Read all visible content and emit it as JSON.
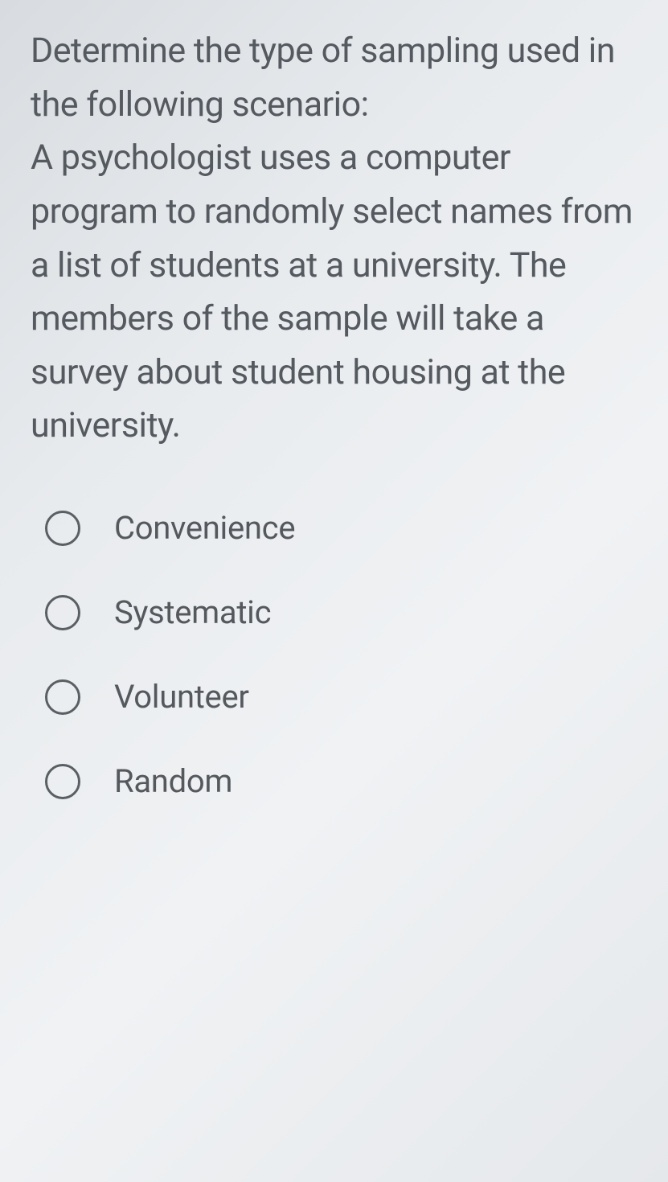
{
  "question": {
    "prompt_line1": "Determine the type of",
    "prompt_line2": "sampling used in the following",
    "prompt_line3": "scenario:",
    "scenario": "A psychologist uses a computer program to randomly select names from a list of students at a university.  The members of the sample will take a survey about student housing at the university."
  },
  "options": [
    {
      "label": "Convenience",
      "selected": false
    },
    {
      "label": "Systematic",
      "selected": false
    },
    {
      "label": "Volunteer",
      "selected": false
    },
    {
      "label": "Random",
      "selected": false
    }
  ],
  "styling": {
    "background_gradient": [
      "#d8dce0",
      "#e8ebee",
      "#f0f2f4",
      "#e5e8eb"
    ],
    "text_color": "#555a60",
    "option_text_color": "#55595e",
    "radio_border_color": "#5a5f64",
    "question_fontsize": 43,
    "option_fontsize": 40,
    "radio_diameter": 44
  }
}
